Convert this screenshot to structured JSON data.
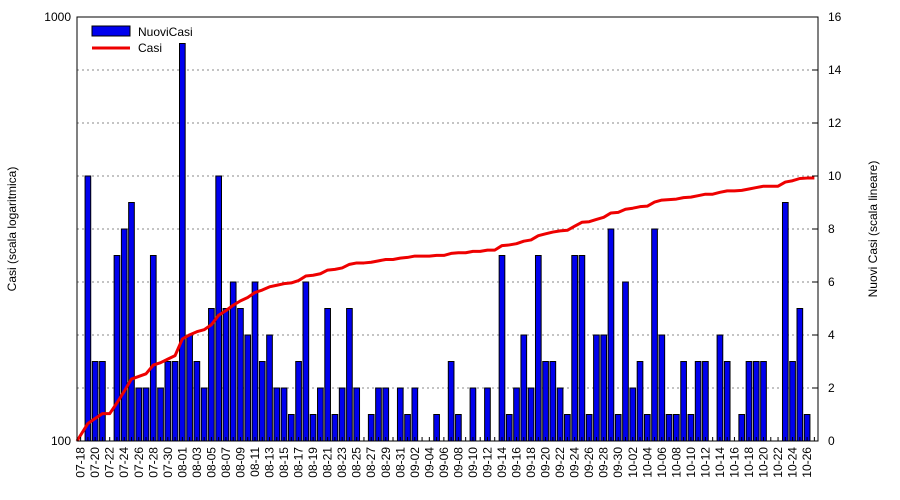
{
  "chart_data": {
    "type": "bar+line",
    "x": [
      "07-18",
      "07-19",
      "07-20",
      "07-21",
      "07-22",
      "07-23",
      "07-24",
      "07-25",
      "07-26",
      "07-27",
      "07-28",
      "07-29",
      "07-30",
      "07-31",
      "08-01",
      "08-02",
      "08-03",
      "08-04",
      "08-05",
      "08-06",
      "08-07",
      "08-08",
      "08-09",
      "08-10",
      "08-11",
      "08-12",
      "08-13",
      "08-14",
      "08-15",
      "08-16",
      "08-17",
      "08-18",
      "08-19",
      "08-20",
      "08-21",
      "08-22",
      "08-23",
      "08-24",
      "08-25",
      "08-26",
      "08-27",
      "08-28",
      "08-29",
      "08-30",
      "08-31",
      "09-01",
      "09-02",
      "09-03",
      "09-04",
      "09-05",
      "09-06",
      "09-07",
      "09-08",
      "09-09",
      "09-10",
      "09-11",
      "09-12",
      "09-13",
      "09-14",
      "09-15",
      "09-16",
      "09-17",
      "09-18",
      "09-19",
      "09-20",
      "09-21",
      "09-22",
      "09-23",
      "09-24",
      "09-25",
      "09-26",
      "09-27",
      "09-28",
      "09-29",
      "09-30",
      "10-01",
      "10-02",
      "10-03",
      "10-04",
      "10-05",
      "10-06",
      "10-07",
      "10-08",
      "10-09",
      "10-10",
      "10-11",
      "10-12",
      "10-13",
      "10-14",
      "10-15",
      "10-16",
      "10-17",
      "10-18",
      "10-19",
      "10-20",
      "10-21",
      "10-22",
      "10-23",
      "10-24",
      "10-25",
      "10-26",
      "10-27"
    ],
    "tick_labels": [
      "07-18",
      "07-20",
      "07-22",
      "07-24",
      "07-26",
      "07-28",
      "07-30",
      "08-01",
      "08-03",
      "08-05",
      "08-07",
      "08-09",
      "08-11",
      "08-13",
      "08-15",
      "08-17",
      "08-19",
      "08-21",
      "08-23",
      "08-25",
      "08-27",
      "08-29",
      "08-31",
      "09-02",
      "09-04",
      "09-06",
      "09-08",
      "09-10",
      "09-12",
      "09-14",
      "09-16",
      "09-18",
      "09-20",
      "09-22",
      "09-24",
      "09-26",
      "09-28",
      "09-30",
      "10-02",
      "10-04",
      "10-06",
      "10-08",
      "10-10",
      "10-12",
      "10-14",
      "10-16",
      "10-18",
      "10-20",
      "10-22",
      "10-24",
      "10-26"
    ],
    "series": [
      {
        "name": "NuoviCasi",
        "type": "bar",
        "axis": "right",
        "color": "#0000ee",
        "values": [
          0,
          10,
          3,
          3,
          0,
          7,
          8,
          9,
          2,
          2,
          7,
          2,
          3,
          3,
          15,
          4,
          3,
          2,
          5,
          10,
          5,
          6,
          5,
          4,
          6,
          3,
          4,
          2,
          2,
          1,
          3,
          6,
          1,
          2,
          5,
          1,
          2,
          5,
          2,
          0,
          1,
          2,
          2,
          0,
          2,
          1,
          2,
          0,
          0,
          1,
          0,
          3,
          1,
          0,
          2,
          0,
          2,
          0,
          7,
          1,
          2,
          4,
          2,
          7,
          3,
          3,
          2,
          1,
          7,
          7,
          1,
          4,
          4,
          8,
          1,
          6,
          2,
          3,
          1,
          8,
          4,
          1,
          1,
          3,
          1,
          3,
          3,
          0,
          4,
          3,
          0,
          1,
          3,
          3,
          3,
          0,
          0,
          9,
          3,
          5,
          1,
          0
        ]
      },
      {
        "name": "Casi",
        "type": "line",
        "axis": "left",
        "color": "#ee0000",
        "values": [
          100,
          110,
          113,
          116,
          116,
          123,
          131,
          140,
          142,
          144,
          151,
          153,
          156,
          159,
          174,
          178,
          181,
          183,
          188,
          198,
          203,
          209,
          214,
          218,
          224,
          227,
          231,
          233,
          235,
          236,
          239,
          245,
          246,
          248,
          253,
          254,
          256,
          261,
          263,
          263,
          264,
          266,
          268,
          268,
          270,
          271,
          273,
          273,
          273,
          274,
          274,
          277,
          278,
          278,
          280,
          280,
          282,
          282,
          289,
          290,
          292,
          296,
          298,
          305,
          308,
          311,
          313,
          314,
          321,
          328,
          329,
          333,
          337,
          345,
          346,
          352,
          354,
          357,
          358,
          366,
          370,
          371,
          372,
          375,
          376,
          379,
          382,
          382,
          386,
          389,
          389,
          390,
          393,
          396,
          399,
          399,
          399,
          408,
          411,
          416,
          417,
          417
        ]
      }
    ],
    "y_left": {
      "label": "Casi (scala logaritmica)",
      "scale": "log",
      "range": [
        100,
        1000
      ],
      "tick_labels": [
        "100",
        "1000"
      ]
    },
    "y_right": {
      "label": "Nuovi Casi (scala lineare)",
      "scale": "linear",
      "range": [
        0,
        16
      ],
      "ticks": [
        0,
        2,
        4,
        6,
        8,
        10,
        12,
        14,
        16
      ]
    },
    "grid": "dotted horizontal",
    "legend": "top-left"
  }
}
